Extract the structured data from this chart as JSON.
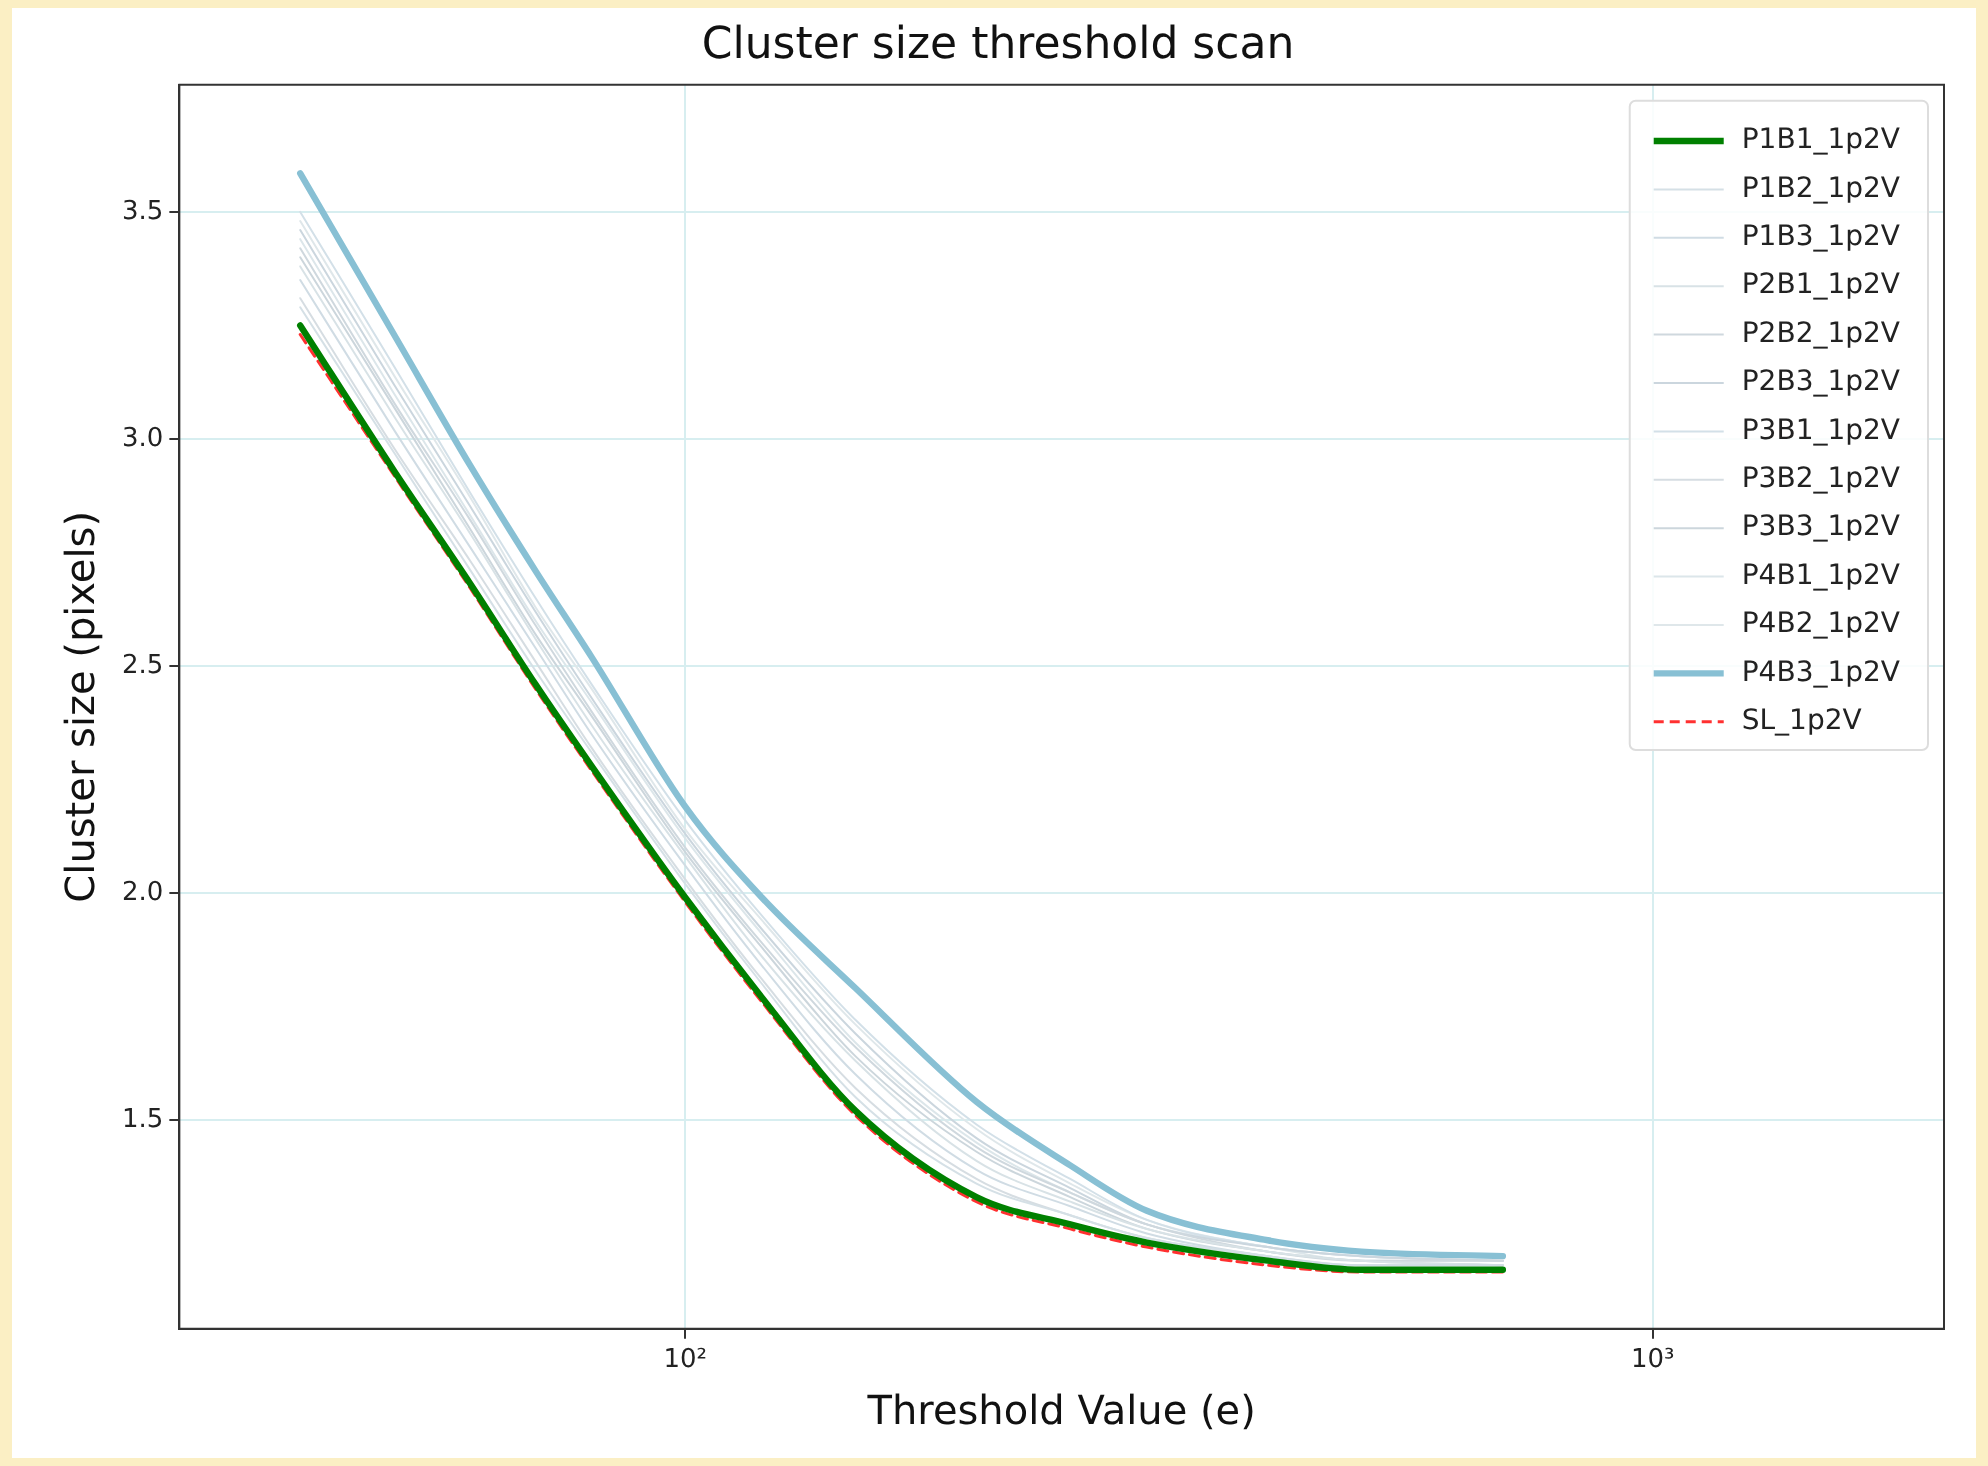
{
  "chart_data": {
    "type": "line",
    "title": "Cluster size threshold scan",
    "xlabel": "Threshold Value (e)",
    "ylabel": "Cluster size (pixels)",
    "x": [
      40,
      50,
      60,
      70,
      80,
      100,
      120,
      150,
      200,
      250,
      300,
      400,
      500,
      700
    ],
    "log": "x",
    "xlim": [
      30,
      2000
    ],
    "xticks": [
      {
        "value": 100,
        "label": "10²"
      },
      {
        "value": 1000,
        "label": "10³"
      }
    ],
    "ylim": [
      1.04,
      3.78
    ],
    "yticks": [
      {
        "value": 1.5,
        "label": "1.5"
      },
      {
        "value": 2.0,
        "label": "2.0"
      },
      {
        "value": 2.5,
        "label": "2.5"
      },
      {
        "value": 3.0,
        "label": "3.0"
      },
      {
        "value": 3.5,
        "label": "3.5"
      }
    ],
    "grid": true,
    "legend": "top right",
    "marker": "none",
    "series": [
      {
        "name": "P1B1_1p2V",
        "color": "#008000",
        "values": [
          3.25,
          2.93,
          2.68,
          2.46,
          2.28,
          1.99,
          1.77,
          1.52,
          1.33,
          1.27,
          1.23,
          1.19,
          1.17,
          1.17
        ]
      },
      {
        "name": "P1B2_1p2V",
        "color": "#d5e0e6",
        "values": [
          3.29,
          2.97,
          2.71,
          2.49,
          2.31,
          2.02,
          1.8,
          1.55,
          1.36,
          1.29,
          1.24,
          1.2,
          1.17,
          1.17
        ]
      },
      {
        "name": "P1B3_1p2V",
        "color": "#d0dce4",
        "values": [
          3.35,
          3.02,
          2.76,
          2.54,
          2.35,
          2.06,
          1.84,
          1.6,
          1.39,
          1.31,
          1.25,
          1.2,
          1.18,
          1.18
        ]
      },
      {
        "name": "P2B1_1p2V",
        "color": "#d8e2e6",
        "values": [
          3.38,
          3.05,
          2.79,
          2.56,
          2.37,
          2.08,
          1.86,
          1.63,
          1.41,
          1.32,
          1.26,
          1.21,
          1.19,
          1.18
        ]
      },
      {
        "name": "P2B2_1p2V",
        "color": "#cfd8de",
        "values": [
          3.42,
          3.08,
          2.82,
          2.59,
          2.4,
          2.1,
          1.89,
          1.66,
          1.44,
          1.34,
          1.27,
          1.21,
          1.19,
          1.19
        ]
      },
      {
        "name": "P2B3_1p2V",
        "color": "#cbd6de",
        "values": [
          3.46,
          3.12,
          2.85,
          2.62,
          2.43,
          2.13,
          1.92,
          1.69,
          1.46,
          1.35,
          1.27,
          1.22,
          1.2,
          1.19
        ]
      },
      {
        "name": "P3B1_1p2V",
        "color": "#d3e0e8",
        "values": [
          3.5,
          3.16,
          2.88,
          2.65,
          2.46,
          2.16,
          1.95,
          1.72,
          1.49,
          1.37,
          1.28,
          1.22,
          1.2,
          1.19
        ]
      },
      {
        "name": "P3B2_1p2V",
        "color": "#d6dde2",
        "values": [
          3.31,
          2.98,
          2.73,
          2.51,
          2.32,
          2.03,
          1.81,
          1.57,
          1.37,
          1.29,
          1.24,
          1.2,
          1.18,
          1.18
        ]
      },
      {
        "name": "P3B3_1p2V",
        "color": "#ccd6dc",
        "values": [
          3.4,
          3.07,
          2.8,
          2.57,
          2.39,
          2.09,
          1.88,
          1.64,
          1.43,
          1.33,
          1.26,
          1.21,
          1.19,
          1.18
        ]
      },
      {
        "name": "P4B1_1p2V",
        "color": "#dce6ea",
        "values": [
          3.44,
          3.1,
          2.83,
          2.6,
          2.42,
          2.12,
          1.91,
          1.67,
          1.45,
          1.34,
          1.27,
          1.22,
          1.19,
          1.19
        ]
      },
      {
        "name": "P4B2_1p2V",
        "color": "#dfe7ea",
        "values": [
          3.48,
          3.14,
          2.87,
          2.63,
          2.45,
          2.14,
          1.94,
          1.71,
          1.48,
          1.36,
          1.28,
          1.22,
          1.2,
          1.19
        ]
      },
      {
        "name": "P4B3_1p2V",
        "color": "#88c0d4",
        "values": [
          3.585,
          3.23,
          2.94,
          2.71,
          2.52,
          2.19,
          1.99,
          1.79,
          1.54,
          1.4,
          1.3,
          1.235,
          1.21,
          1.2
        ]
      },
      {
        "name": "SL_1p2V",
        "color": "#ff3030",
        "line_style": "dashed",
        "values": [
          3.23,
          2.92,
          2.67,
          2.45,
          2.27,
          1.98,
          1.76,
          1.51,
          1.32,
          1.26,
          1.22,
          1.18,
          1.165,
          1.165
        ]
      }
    ]
  }
}
